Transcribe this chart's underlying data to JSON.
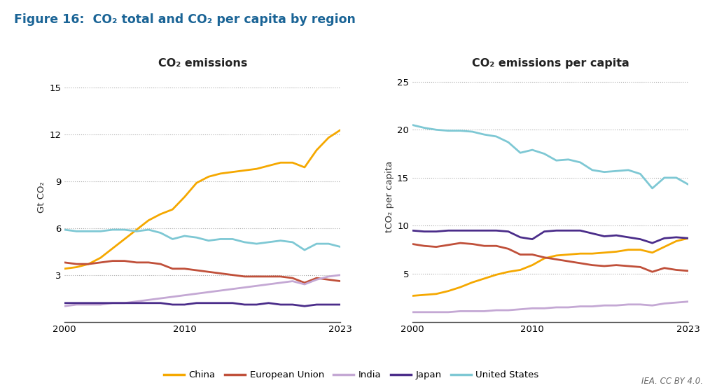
{
  "title": "Figure 16:  CO₂ total and CO₂ per capita by region",
  "title_color": "#1A6496",
  "left_title": "CO₂ emissions",
  "right_title": "CO₂ emissions per capita",
  "left_ylabel": "Gt CO₂",
  "right_ylabel": "tCO₂ per capita",
  "years": [
    2000,
    2001,
    2002,
    2003,
    2004,
    2005,
    2006,
    2007,
    2008,
    2009,
    2010,
    2011,
    2012,
    2013,
    2014,
    2015,
    2016,
    2017,
    2018,
    2019,
    2020,
    2021,
    2022,
    2023
  ],
  "left": {
    "China": [
      3.4,
      3.5,
      3.7,
      4.1,
      4.7,
      5.3,
      5.9,
      6.5,
      6.9,
      7.2,
      8.0,
      8.9,
      9.3,
      9.5,
      9.6,
      9.7,
      9.8,
      10.0,
      10.2,
      10.2,
      9.9,
      11.0,
      11.8,
      12.3
    ],
    "European Union": [
      3.8,
      3.7,
      3.7,
      3.8,
      3.9,
      3.9,
      3.8,
      3.8,
      3.7,
      3.4,
      3.4,
      3.3,
      3.2,
      3.1,
      3.0,
      2.9,
      2.9,
      2.9,
      2.9,
      2.8,
      2.5,
      2.8,
      2.7,
      2.6
    ],
    "India": [
      1.0,
      1.1,
      1.1,
      1.1,
      1.2,
      1.2,
      1.3,
      1.4,
      1.5,
      1.6,
      1.7,
      1.8,
      1.9,
      2.0,
      2.1,
      2.2,
      2.3,
      2.4,
      2.5,
      2.6,
      2.4,
      2.7,
      2.9,
      3.0
    ],
    "Japan": [
      1.2,
      1.2,
      1.2,
      1.2,
      1.2,
      1.2,
      1.2,
      1.2,
      1.2,
      1.1,
      1.1,
      1.2,
      1.2,
      1.2,
      1.2,
      1.1,
      1.1,
      1.2,
      1.1,
      1.1,
      1.0,
      1.1,
      1.1,
      1.1
    ],
    "United States": [
      5.9,
      5.8,
      5.8,
      5.8,
      5.9,
      5.9,
      5.8,
      5.9,
      5.7,
      5.3,
      5.5,
      5.4,
      5.2,
      5.3,
      5.3,
      5.1,
      5.0,
      5.1,
      5.2,
      5.1,
      4.6,
      5.0,
      5.0,
      4.8
    ]
  },
  "right": {
    "China": [
      2.7,
      2.8,
      2.9,
      3.2,
      3.6,
      4.1,
      4.5,
      4.9,
      5.2,
      5.4,
      5.9,
      6.6,
      6.9,
      7.0,
      7.1,
      7.1,
      7.2,
      7.3,
      7.5,
      7.5,
      7.2,
      7.8,
      8.4,
      8.7
    ],
    "European Union": [
      8.1,
      7.9,
      7.8,
      8.0,
      8.2,
      8.1,
      7.9,
      7.9,
      7.6,
      7.0,
      7.0,
      6.7,
      6.5,
      6.3,
      6.1,
      5.9,
      5.8,
      5.9,
      5.8,
      5.7,
      5.2,
      5.6,
      5.4,
      5.3
    ],
    "India": [
      1.0,
      1.0,
      1.0,
      1.0,
      1.1,
      1.1,
      1.1,
      1.2,
      1.2,
      1.3,
      1.4,
      1.4,
      1.5,
      1.5,
      1.6,
      1.6,
      1.7,
      1.7,
      1.8,
      1.8,
      1.7,
      1.9,
      2.0,
      2.1
    ],
    "Japan": [
      9.5,
      9.4,
      9.4,
      9.5,
      9.5,
      9.5,
      9.5,
      9.5,
      9.4,
      8.8,
      8.6,
      9.4,
      9.5,
      9.5,
      9.5,
      9.2,
      8.9,
      9.0,
      8.8,
      8.6,
      8.2,
      8.7,
      8.8,
      8.7
    ],
    "United States": [
      20.5,
      20.2,
      20.0,
      19.9,
      19.9,
      19.8,
      19.5,
      19.3,
      18.7,
      17.6,
      17.9,
      17.5,
      16.8,
      16.9,
      16.6,
      15.8,
      15.6,
      15.7,
      15.8,
      15.4,
      13.9,
      15.0,
      15.0,
      14.3
    ]
  },
  "colors": {
    "China": "#F5A800",
    "European Union": "#C0503A",
    "India": "#C4A8D4",
    "Japan": "#4B2D8A",
    "United States": "#7EC8D4"
  },
  "left_ylim": [
    0,
    16
  ],
  "left_yticks": [
    3,
    6,
    9,
    12,
    15
  ],
  "right_ylim": [
    0,
    26
  ],
  "right_yticks": [
    5,
    10,
    15,
    20,
    25
  ],
  "background_color": "#FFFFFF",
  "grid_color": "#AAAAAA",
  "attribution": "IEA. CC BY 4.0.",
  "linewidth": 2.0,
  "regions": [
    "China",
    "European Union",
    "India",
    "Japan",
    "United States"
  ]
}
